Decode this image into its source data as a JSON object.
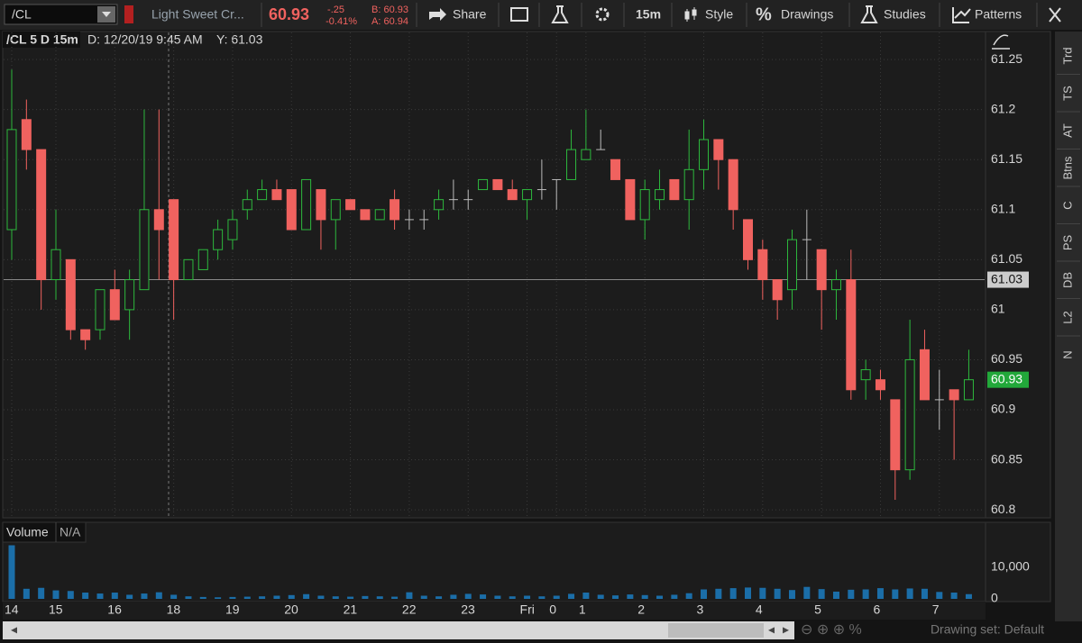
{
  "toolbar": {
    "symbol": "/CL",
    "description": "Light Sweet Cr...",
    "last": "60.93",
    "change": "-.25",
    "change_pct": "-0.41%",
    "bid": "B: 60.93",
    "ask": "A: 60.94",
    "share": "Share",
    "interval": "15m",
    "style": "Style",
    "drawings": "Drawings",
    "studies": "Studies",
    "patterns": "Patterns"
  },
  "chart_header": {
    "symbol": "/CL 5 D 15m",
    "date": "D: 12/20/19 9:45 AM",
    "y": "Y: 61.03"
  },
  "sidebar": [
    "Trd",
    "TS",
    "AT",
    "Btns",
    "C",
    "PS",
    "DB",
    "L2",
    "N"
  ],
  "volume_header": {
    "title": "Volume",
    "value": "N/A"
  },
  "footer": {
    "drawing_set": "Drawing set: Default"
  },
  "chart_data": {
    "type": "candlestick",
    "categories": [
      "14",
      null,
      null,
      "15",
      null,
      null,
      null,
      "16",
      null,
      null,
      null,
      "18",
      null,
      null,
      null,
      "19",
      null,
      null,
      null,
      "20",
      null,
      null,
      null,
      "21",
      null,
      null,
      null,
      "22",
      null,
      null,
      null,
      "23",
      null,
      null,
      null,
      "Fri",
      null,
      "0",
      null,
      "1",
      null,
      null,
      null,
      "2",
      null,
      null,
      null,
      "3",
      null,
      null,
      null,
      "4",
      null,
      null,
      null,
      "5",
      null,
      null,
      null,
      "6",
      null,
      null,
      null,
      "7",
      null,
      null
    ],
    "open": [
      61.08,
      61.19,
      61.16,
      61.03,
      61.05,
      60.98,
      60.98,
      61.02,
      61.0,
      61.02,
      61.1,
      61.11,
      61.03,
      61.04,
      61.06,
      61.07,
      61.1,
      61.11,
      61.12,
      61.12,
      61.08,
      61.12,
      61.09,
      61.11,
      61.1,
      61.09,
      61.11,
      61.09,
      61.09,
      61.1,
      61.11,
      61.11,
      61.12,
      61.13,
      61.12,
      61.11,
      61.12,
      61.13,
      61.13,
      61.15,
      61.16,
      61.15,
      61.13,
      61.09,
      61.11,
      61.13,
      61.11,
      61.14,
      61.17,
      61.15,
      61.09,
      61.06,
      61.03,
      61.02,
      61.07,
      61.06,
      61.02,
      61.03,
      60.93,
      60.93,
      60.91,
      60.84,
      60.96,
      60.91,
      60.92,
      60.91
    ],
    "high": [
      61.24,
      61.21,
      61.16,
      61.1,
      61.05,
      60.98,
      61.02,
      61.04,
      61.04,
      61.2,
      61.2,
      61.11,
      61.05,
      61.06,
      61.09,
      61.1,
      61.12,
      61.13,
      61.13,
      61.12,
      61.13,
      61.12,
      61.11,
      61.11,
      61.1,
      61.1,
      61.12,
      61.1,
      61.1,
      61.12,
      61.13,
      61.12,
      61.13,
      61.13,
      61.13,
      61.12,
      61.15,
      61.13,
      61.18,
      61.2,
      61.18,
      61.15,
      61.13,
      61.13,
      61.14,
      61.13,
      61.18,
      61.19,
      61.17,
      61.15,
      61.09,
      61.07,
      61.03,
      61.08,
      61.1,
      61.06,
      61.04,
      61.06,
      60.95,
      60.94,
      60.91,
      60.99,
      60.98,
      60.94,
      60.92,
      60.96
    ],
    "low": [
      61.05,
      61.14,
      61.0,
      61.01,
      60.97,
      60.96,
      60.97,
      60.99,
      60.97,
      61.02,
      61.03,
      60.99,
      61.03,
      61.04,
      61.05,
      61.06,
      61.09,
      61.11,
      61.11,
      61.08,
      61.08,
      61.06,
      61.06,
      61.1,
      61.09,
      61.09,
      61.08,
      61.08,
      61.08,
      61.09,
      61.1,
      61.1,
      61.12,
      61.12,
      61.11,
      61.09,
      61.11,
      61.1,
      61.13,
      61.15,
      61.16,
      61.13,
      61.09,
      61.07,
      61.1,
      61.11,
      61.08,
      61.12,
      61.12,
      61.08,
      61.04,
      61.01,
      60.99,
      61.0,
      61.03,
      60.98,
      60.99,
      60.91,
      60.91,
      60.91,
      60.81,
      60.83,
      60.91,
      60.88,
      60.85,
      60.91
    ],
    "close": [
      61.18,
      61.16,
      61.03,
      61.06,
      60.98,
      60.97,
      61.02,
      60.99,
      61.03,
      61.1,
      61.08,
      61.03,
      61.05,
      61.06,
      61.08,
      61.09,
      61.11,
      61.12,
      61.11,
      61.08,
      61.13,
      61.09,
      61.11,
      61.1,
      61.09,
      61.1,
      61.09,
      61.09,
      61.09,
      61.11,
      61.11,
      61.11,
      61.13,
      61.12,
      61.11,
      61.12,
      61.12,
      61.13,
      61.16,
      61.16,
      61.16,
      61.13,
      61.09,
      61.12,
      61.12,
      61.11,
      61.14,
      61.17,
      61.15,
      61.1,
      61.05,
      61.03,
      61.01,
      61.07,
      61.07,
      61.02,
      61.03,
      60.92,
      60.94,
      60.92,
      60.84,
      60.95,
      60.91,
      60.91,
      60.91,
      60.93
    ],
    "up_color": "#2db83d",
    "down_color": "#f0625f",
    "flat_color": "#bbbbbb",
    "ylim": [
      60.792,
      61.278
    ],
    "yticks": [
      61.25,
      61.2,
      61.15,
      61.1,
      61.05,
      61,
      60.95,
      60.9,
      60.85,
      60.8
    ],
    "grid": true,
    "cursor_price": 61.03,
    "last_price": 60.93,
    "last_color": "#22a83a",
    "volume": [
      17000,
      3200,
      3500,
      2700,
      2500,
      2000,
      1700,
      2000,
      1300,
      1700,
      2100,
      1300,
      800,
      600,
      500,
      600,
      700,
      800,
      1000,
      1200,
      1500,
      1000,
      800,
      700,
      900,
      800,
      700,
      2100,
      1000,
      800,
      1300,
      1600,
      1400,
      1000,
      800,
      1000,
      800,
      1000,
      1600,
      2000,
      1300,
      1100,
      1400,
      1200,
      1000,
      1300,
      1800,
      3000,
      3200,
      3400,
      3600,
      3500,
      3200,
      2800,
      3800,
      3100,
      2300,
      2900,
      3000,
      3400,
      3000,
      3300,
      3200,
      2200,
      2000,
      1500
    ],
    "volume_color": "#1b6ea8",
    "volume_ylim": [
      0,
      24000
    ],
    "volume_yticks": [
      {
        "value": 10000,
        "label": "10,000"
      },
      0
    ]
  }
}
